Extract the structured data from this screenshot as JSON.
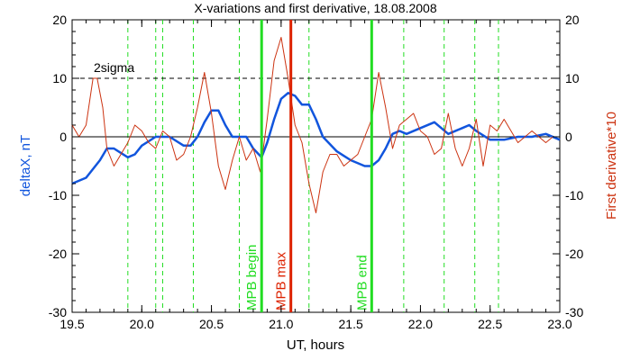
{
  "chart_data": {
    "type": "line",
    "title": "X-variations and first derivative, 18.08.2008",
    "xlabel": "UT, hours",
    "ylabel_left": "deltaX, nT",
    "ylabel_right": "First derivative*10",
    "xlim": [
      19.5,
      23.0
    ],
    "ylim": [
      -30,
      20
    ],
    "x_ticks": [
      "19.5",
      "20.0",
      "20.5",
      "21.0",
      "21.5",
      "22.0",
      "22.5",
      "23.0"
    ],
    "y_ticks_left": [
      "-30",
      "-20",
      "-10",
      "0",
      "10",
      "20"
    ],
    "y_ticks_right": [
      "-30",
      "-20",
      "-10",
      "0",
      "10",
      "20"
    ],
    "threshold": {
      "value": 10,
      "label": "2sigma"
    },
    "zero_line": 0,
    "dashed_vlines_x": [
      19.9,
      20.1,
      20.15,
      20.37,
      20.7,
      21.2,
      21.88,
      22.17,
      22.39,
      22.56
    ],
    "markers": [
      {
        "x": 20.86,
        "label": "MPB begin",
        "color": "#22dd22"
      },
      {
        "x": 21.07,
        "label": "MPB max",
        "color": "#dd2200"
      },
      {
        "x": 21.65,
        "label": "MPB end",
        "color": "#22dd22"
      }
    ],
    "series": [
      {
        "color": "#1155dd",
        "x": [
          19.5,
          19.6,
          19.7,
          19.75,
          19.8,
          19.9,
          19.95,
          20.0,
          20.1,
          20.2,
          20.3,
          20.35,
          20.4,
          20.45,
          20.5,
          20.55,
          20.6,
          20.65,
          20.7,
          20.75,
          20.8,
          20.86,
          20.9,
          20.95,
          21.0,
          21.05,
          21.1,
          21.15,
          21.2,
          21.25,
          21.3,
          21.4,
          21.5,
          21.6,
          21.65,
          21.7,
          21.75,
          21.8,
          21.85,
          21.9,
          22.0,
          22.1,
          22.2,
          22.3,
          22.35,
          22.4,
          22.5,
          22.6,
          22.7,
          22.8,
          22.9,
          23.0
        ],
        "values": [
          -8,
          -7,
          -4,
          -2,
          -2,
          -3.5,
          -3,
          -1.5,
          0,
          0,
          -1.5,
          -1.5,
          0,
          2.5,
          4.5,
          4.5,
          2,
          0,
          0,
          0,
          -2,
          -3.5,
          -1,
          3,
          6.5,
          7.5,
          7,
          5.5,
          5.5,
          3,
          0,
          -2.5,
          -4,
          -5,
          -5,
          -4,
          -2,
          0.5,
          1,
          0.5,
          1.5,
          2.5,
          0.5,
          1.5,
          2,
          1,
          -0.5,
          -0.5,
          0,
          0,
          0.5,
          -0.5
        ]
      },
      {
        "color": "#cc3311",
        "x": [
          19.5,
          19.55,
          19.6,
          19.65,
          19.68,
          19.72,
          19.75,
          19.8,
          19.85,
          19.9,
          19.95,
          20.0,
          20.05,
          20.1,
          20.15,
          20.2,
          20.25,
          20.3,
          20.35,
          20.4,
          20.45,
          20.5,
          20.55,
          20.6,
          20.65,
          20.7,
          20.75,
          20.8,
          20.85,
          20.9,
          20.95,
          21.0,
          21.05,
          21.1,
          21.15,
          21.2,
          21.25,
          21.3,
          21.35,
          21.4,
          21.45,
          21.5,
          21.55,
          21.6,
          21.65,
          21.7,
          21.75,
          21.8,
          21.85,
          21.9,
          21.95,
          22.0,
          22.05,
          22.1,
          22.15,
          22.2,
          22.25,
          22.3,
          22.35,
          22.4,
          22.45,
          22.5,
          22.55,
          22.6,
          22.65,
          22.7,
          22.75,
          22.8,
          22.85,
          22.9,
          22.95,
          23.0
        ],
        "values": [
          2,
          0,
          2,
          10,
          10,
          5,
          -2,
          -5,
          -3,
          -1,
          2,
          1,
          -1,
          -2,
          1,
          0,
          -4,
          -3,
          0,
          5,
          11,
          4,
          -5,
          -9,
          -4,
          0,
          -4,
          -2,
          -6,
          3,
          13,
          17,
          10,
          2,
          -1,
          -8,
          -13,
          -6,
          -3,
          -3,
          -5,
          -4,
          -3,
          0,
          3,
          11,
          5,
          -2,
          2,
          3,
          4,
          1,
          0,
          -3,
          -2,
          4,
          -2,
          -5,
          -2,
          3,
          -5,
          2,
          1,
          3,
          1,
          -1,
          0,
          1,
          0,
          -1,
          0,
          0
        ]
      }
    ]
  }
}
